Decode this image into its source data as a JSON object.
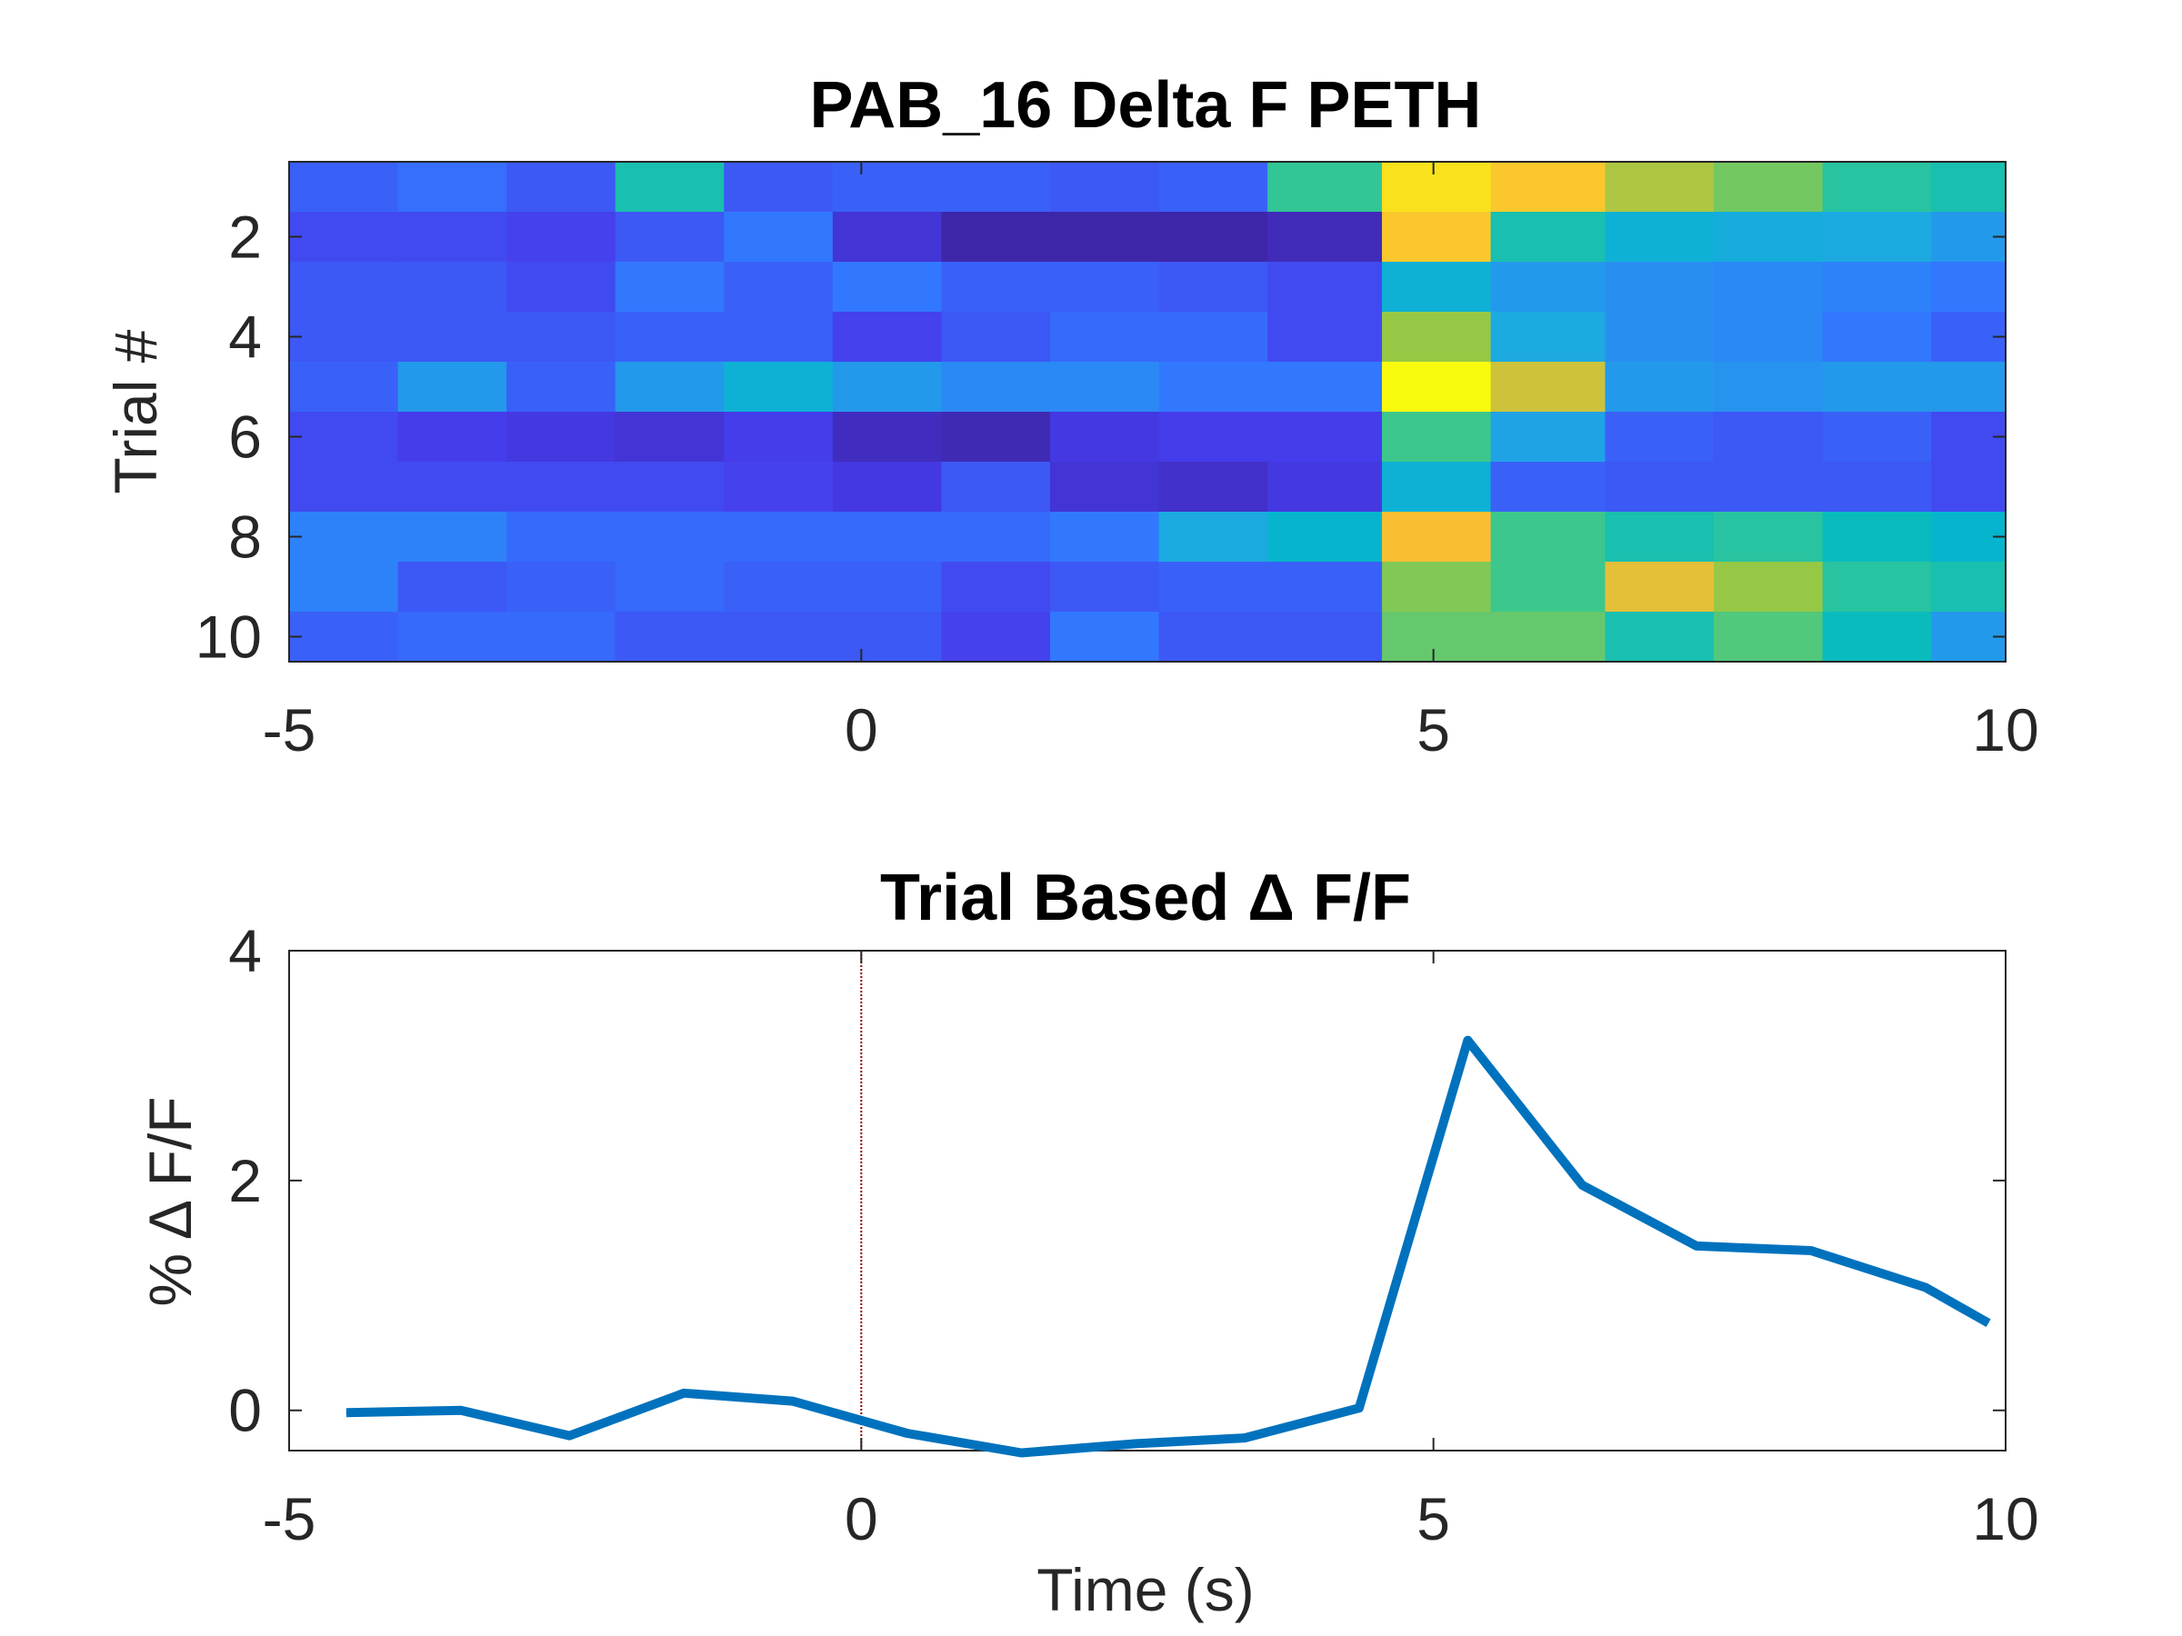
{
  "chart_data": [
    {
      "type": "heatmap",
      "title": "PAB_16  Delta F PETH",
      "xlabel": "",
      "ylabel": "Trial #",
      "xlim": [
        -5,
        10
      ],
      "x_ticks": [
        "-5",
        "0",
        "5",
        "10"
      ],
      "y_ticks": [
        "2",
        "4",
        "6",
        "8",
        "10"
      ],
      "colormap": "parula",
      "x_bin_starts": [
        -5,
        -4.05,
        -3.1,
        -2.15,
        -1.2,
        -0.25,
        0.7,
        1.65,
        2.6,
        3.55,
        4.55,
        5.5,
        6.5,
        7.45,
        8.4,
        9.35
      ],
      "rows": [
        [
          0.2,
          0.23,
          0.18,
          0.55,
          0.18,
          0.2,
          0.2,
          0.18,
          0.2,
          0.6,
          0.95,
          0.9,
          0.78,
          0.7,
          0.58,
          0.55
        ],
        [
          0.15,
          0.15,
          0.13,
          0.18,
          0.25,
          0.08,
          0.0,
          0.0,
          0.0,
          0.03,
          0.9,
          0.55,
          0.45,
          0.42,
          0.4,
          0.35
        ],
        [
          0.18,
          0.18,
          0.15,
          0.25,
          0.2,
          0.25,
          0.2,
          0.2,
          0.18,
          0.15,
          0.45,
          0.35,
          0.32,
          0.3,
          0.28,
          0.25
        ],
        [
          0.18,
          0.18,
          0.18,
          0.2,
          0.2,
          0.13,
          0.18,
          0.22,
          0.22,
          0.15,
          0.75,
          0.4,
          0.32,
          0.3,
          0.25,
          0.2
        ],
        [
          0.2,
          0.35,
          0.2,
          0.35,
          0.45,
          0.35,
          0.3,
          0.3,
          0.25,
          0.25,
          1.0,
          0.82,
          0.35,
          0.33,
          0.35,
          0.35
        ],
        [
          0.15,
          0.12,
          0.1,
          0.08,
          0.12,
          0.04,
          0.02,
          0.1,
          0.12,
          0.12,
          0.62,
          0.38,
          0.2,
          0.18,
          0.2,
          0.15
        ],
        [
          0.15,
          0.15,
          0.15,
          0.15,
          0.13,
          0.1,
          0.18,
          0.08,
          0.06,
          0.1,
          0.45,
          0.2,
          0.18,
          0.18,
          0.18,
          0.15
        ],
        [
          0.28,
          0.28,
          0.22,
          0.22,
          0.22,
          0.22,
          0.22,
          0.25,
          0.4,
          0.48,
          0.88,
          0.62,
          0.55,
          0.58,
          0.52,
          0.48
        ],
        [
          0.28,
          0.18,
          0.2,
          0.22,
          0.2,
          0.2,
          0.15,
          0.18,
          0.2,
          0.2,
          0.72,
          0.62,
          0.85,
          0.75,
          0.58,
          0.55
        ],
        [
          0.2,
          0.22,
          0.22,
          0.18,
          0.18,
          0.18,
          0.13,
          0.25,
          0.18,
          0.18,
          0.68,
          0.68,
          0.55,
          0.65,
          0.52,
          0.35
        ]
      ]
    },
    {
      "type": "line",
      "title": "Trial Based Δ F/F",
      "xlabel": "Time (s)",
      "ylabel": "% Δ F/F",
      "xlim": [
        -5,
        10
      ],
      "ylim": [
        -0.35,
        4
      ],
      "x_ticks": [
        "-5",
        "0",
        "5",
        "10"
      ],
      "y_ticks": [
        "0",
        "2",
        "4"
      ],
      "reference_line_x": 0,
      "reference_line_color": "#8B0000",
      "series": [
        {
          "color": "#0072BD",
          "x": [
            -4.5,
            -3.5,
            -2.55,
            -1.55,
            -0.6,
            0.4,
            1.4,
            2.4,
            3.35,
            4.35,
            5.3,
            6.3,
            7.3,
            8.3,
            9.3,
            9.85
          ],
          "y": [
            -0.02,
            0.0,
            -0.22,
            0.15,
            0.08,
            -0.2,
            -0.37,
            -0.29,
            -0.24,
            0.02,
            3.22,
            1.96,
            1.43,
            1.39,
            1.07,
            0.76
          ]
        }
      ]
    }
  ]
}
